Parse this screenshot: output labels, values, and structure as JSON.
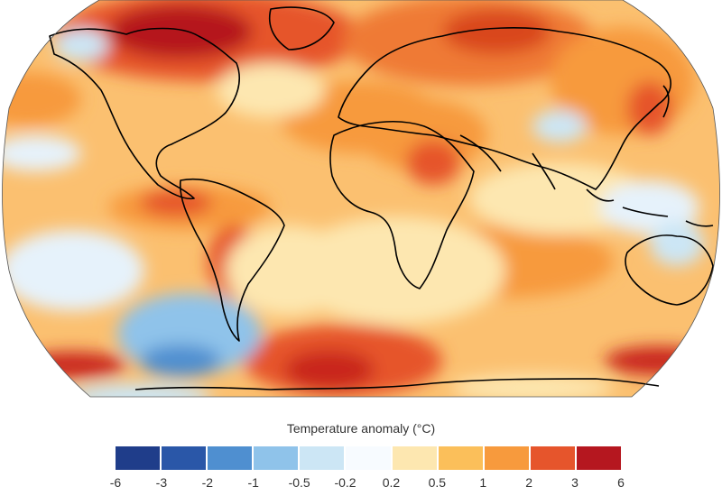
{
  "map": {
    "projection": "Robinson (world)",
    "continent_outline_color": "#000000"
  },
  "legend": {
    "title": "Temperature anomaly (°C)",
    "ticks": [
      "-6",
      "-3",
      "-2",
      "-1",
      "-0.5",
      "-0.2",
      "0.2",
      "0.5",
      "1",
      "2",
      "3",
      "6"
    ],
    "colors": [
      "#1f3d8a",
      "#2a57a8",
      "#4f8fd0",
      "#8fc3ea",
      "#cce6f5",
      "#f7fbff",
      "#fde7b0",
      "#fbbf5a",
      "#f79a3d",
      "#e6552c",
      "#b5171f"
    ]
  }
}
